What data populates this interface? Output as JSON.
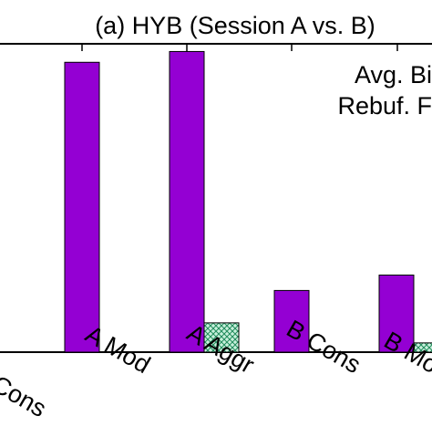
{
  "chart_data": {
    "type": "bar",
    "title": "(a) HYB (Session A vs. B)",
    "categories": [
      "A Cons",
      "A Mod",
      "A Aggr",
      "B Cons",
      "B Mod"
    ],
    "categories_visible": [
      "Cons",
      "A Mod",
      "A Aggr",
      "B Cons",
      "B Mo"
    ],
    "legend_lines": [
      "Avg. Bi",
      "Rebuf. F"
    ],
    "legend_placement": "top-right",
    "series": [
      {
        "name": "",
        "color": "#9400d3",
        "fill": "solid",
        "values": [
          null,
          0.94,
          0.975,
          0.2,
          0.25
        ]
      },
      {
        "name": "",
        "color": "#2e8b57",
        "fill": "crosshatch",
        "values": [
          null,
          0,
          0.095,
          0,
          0.03
        ]
      }
    ],
    "ylim": [
      0,
      1
    ],
    "grid": false,
    "xlabel": "",
    "ylabel": ""
  }
}
